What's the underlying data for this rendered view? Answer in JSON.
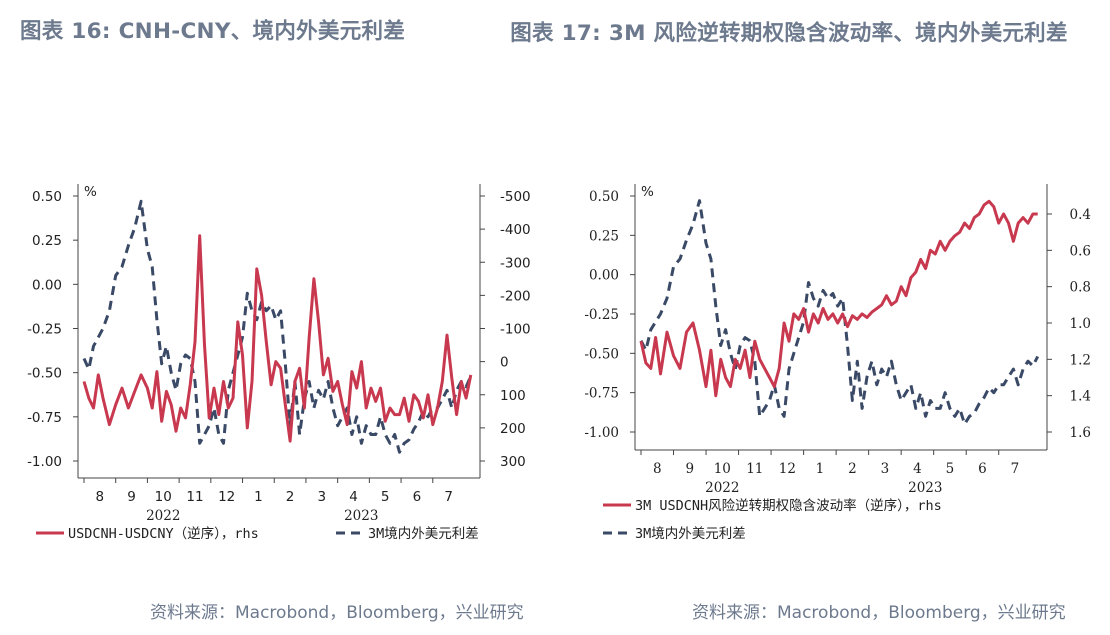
{
  "titles": {
    "left": "图表 16: CNH-CNY、境内外美元利差",
    "right": "图表 17: 3M 风险逆转期权隐含波动率、境内外美元利差"
  },
  "sources": {
    "left": "资料来源：Macrobond，Bloomberg，兴业研究",
    "right": "资料来源：Macrobond，Bloomberg，兴业研究"
  },
  "colors": {
    "red": "#c8394f",
    "navy": "#3a4a66"
  },
  "chart_data": [
    {
      "type": "line",
      "title": "图表 16: CNH-CNY、境内外美元利差",
      "unit_label": "%",
      "x_tick_labels": [
        "8",
        "9",
        "10",
        "11",
        "12",
        "1",
        "2",
        "3",
        "4",
        "5",
        "6",
        "7"
      ],
      "year_labels": [
        "2022",
        "2023"
      ],
      "ylim": [
        -1.0,
        0.5
      ],
      "yticks": [
        "0.50",
        "0.25",
        "0.00",
        "-0.25",
        "-0.50",
        "-0.75",
        "-1.00"
      ],
      "ylim_right": [
        300,
        -500
      ],
      "yticks_right": [
        "-500",
        "-400",
        "-300",
        "-200",
        "-100",
        "0",
        "100",
        "200",
        "300"
      ],
      "x_range": [
        0,
        12.3
      ],
      "series": [
        {
          "name": "USDCNH-USDCNY（逆序），rhs",
          "axis": "right",
          "style": "solid",
          "color": "red",
          "x": [
            0,
            0.15,
            0.3,
            0.45,
            0.6,
            0.8,
            1.0,
            1.2,
            1.4,
            1.6,
            1.8,
            2.0,
            2.15,
            2.3,
            2.45,
            2.6,
            2.75,
            2.9,
            3.05,
            3.2,
            3.35,
            3.5,
            3.65,
            3.8,
            3.95,
            4.1,
            4.25,
            4.4,
            4.55,
            4.7,
            4.85,
            5.0,
            5.15,
            5.3,
            5.45,
            5.6,
            5.75,
            5.9,
            6.05,
            6.2,
            6.35,
            6.5,
            6.65,
            6.8,
            6.95,
            7.1,
            7.25,
            7.4,
            7.55,
            7.7,
            7.85,
            8.0,
            8.15,
            8.3,
            8.45,
            8.6,
            8.75,
            8.9,
            9.05,
            9.2,
            9.35,
            9.5,
            9.65,
            9.8,
            9.95,
            10.1,
            10.25,
            10.4,
            10.55,
            10.7,
            10.85,
            11.0,
            11.15,
            11.3,
            11.45,
            11.6,
            11.75,
            11.9,
            12.05,
            12.2
          ],
          "values": [
            60,
            110,
            140,
            40,
            110,
            190,
            130,
            80,
            140,
            90,
            40,
            80,
            140,
            30,
            180,
            90,
            130,
            210,
            140,
            170,
            70,
            -60,
            -380,
            -50,
            170,
            80,
            160,
            60,
            140,
            110,
            -120,
            -20,
            200,
            60,
            -280,
            -200,
            -60,
            70,
            0,
            20,
            130,
            240,
            60,
            20,
            140,
            -70,
            -250,
            -120,
            40,
            -10,
            90,
            60,
            130,
            190,
            30,
            80,
            0,
            140,
            80,
            120,
            80,
            180,
            140,
            160,
            160,
            110,
            180,
            100,
            120,
            170,
            100,
            190,
            140,
            60,
            -80,
            50,
            160,
            60,
            110,
            40
          ]
        },
        {
          "name": "3M境内外美元利差",
          "axis": "left",
          "style": "dashed",
          "color": "navy",
          "x": [
            0,
            0.15,
            0.3,
            0.45,
            0.6,
            0.8,
            1.0,
            1.2,
            1.4,
            1.6,
            1.8,
            2.0,
            2.15,
            2.3,
            2.45,
            2.6,
            2.75,
            2.9,
            3.05,
            3.2,
            3.35,
            3.5,
            3.65,
            3.8,
            3.95,
            4.1,
            4.25,
            4.4,
            4.55,
            4.7,
            4.85,
            5.0,
            5.15,
            5.3,
            5.45,
            5.6,
            5.75,
            5.9,
            6.05,
            6.2,
            6.35,
            6.5,
            6.65,
            6.8,
            6.95,
            7.1,
            7.25,
            7.4,
            7.55,
            7.7,
            7.85,
            8.0,
            8.15,
            8.3,
            8.45,
            8.6,
            8.75,
            8.9,
            9.05,
            9.2,
            9.35,
            9.5,
            9.65,
            9.8,
            9.95,
            10.1,
            10.25,
            10.4,
            10.55,
            10.7,
            10.85,
            11.0,
            11.15,
            11.3,
            11.45,
            11.6,
            11.75,
            11.9,
            12.05,
            12.2
          ],
          "values": [
            -0.42,
            -0.48,
            -0.35,
            -0.3,
            -0.25,
            -0.15,
            0.05,
            0.1,
            0.22,
            0.32,
            0.47,
            0.2,
            0.1,
            -0.2,
            -0.45,
            -0.35,
            -0.5,
            -0.6,
            -0.45,
            -0.4,
            -0.42,
            -0.55,
            -0.9,
            -0.85,
            -0.8,
            -0.7,
            -0.85,
            -0.9,
            -0.6,
            -0.5,
            -0.4,
            -0.3,
            -0.05,
            -0.15,
            -0.2,
            -0.1,
            -0.15,
            -0.12,
            -0.2,
            -0.15,
            -0.45,
            -0.8,
            -0.55,
            -0.85,
            -0.65,
            -0.55,
            -0.7,
            -0.6,
            -0.65,
            -0.55,
            -0.7,
            -0.8,
            -0.75,
            -0.7,
            -0.85,
            -0.75,
            -0.9,
            -0.8,
            -0.85,
            -0.85,
            -0.75,
            -0.85,
            -0.9,
            -0.85,
            -0.95,
            -0.9,
            -0.88,
            -0.82,
            -0.78,
            -0.72,
            -0.75,
            -0.7,
            -0.7,
            -0.65,
            -0.6,
            -0.7,
            -0.6,
            -0.55,
            -0.58,
            -0.52
          ]
        }
      ]
    },
    {
      "type": "line",
      "title": "图表 17: 3M 风险逆转期权隐含波动率、境内外美元利差",
      "unit_label": "%",
      "x_tick_labels": [
        "8",
        "9",
        "10",
        "11",
        "12",
        "1",
        "2",
        "3",
        "4",
        "5",
        "6",
        "7"
      ],
      "year_labels": [
        "2022",
        "2023"
      ],
      "ylim": [
        -1.1,
        0.5
      ],
      "yticks": [
        "0.50",
        "0.25",
        "0.00",
        "-0.25",
        "-0.50",
        "-0.75",
        "-1.00"
      ],
      "ylim_right": [
        1.7,
        0.3
      ],
      "yticks_right": [
        "0.4",
        "0.6",
        "0.8",
        "1.0",
        "1.2",
        "1.4",
        "1.6"
      ],
      "x_range": [
        0,
        12.3
      ],
      "series": [
        {
          "name": "3M USDCNH风险逆转期权隐含波动率（逆序），rhs",
          "axis": "right",
          "style": "solid",
          "color": "red",
          "x": [
            0,
            0.15,
            0.3,
            0.45,
            0.6,
            0.8,
            1.0,
            1.2,
            1.4,
            1.6,
            1.8,
            2.0,
            2.15,
            2.3,
            2.45,
            2.6,
            2.75,
            2.9,
            3.05,
            3.2,
            3.35,
            3.5,
            3.65,
            3.8,
            3.95,
            4.1,
            4.25,
            4.4,
            4.55,
            4.7,
            4.85,
            5.0,
            5.15,
            5.3,
            5.45,
            5.6,
            5.75,
            5.9,
            6.05,
            6.2,
            6.35,
            6.5,
            6.65,
            6.8,
            6.95,
            7.1,
            7.25,
            7.4,
            7.55,
            7.7,
            7.85,
            8.0,
            8.15,
            8.3,
            8.45,
            8.6,
            8.75,
            8.9,
            9.05,
            9.2,
            9.35,
            9.5,
            9.65,
            9.8,
            9.95,
            10.1,
            10.25,
            10.4,
            10.55,
            10.7,
            10.85,
            11.0,
            11.15,
            11.3,
            11.45,
            11.6,
            11.75,
            11.9,
            12.05,
            12.2
          ],
          "values": [
            1.1,
            1.22,
            1.25,
            1.08,
            1.28,
            1.05,
            1.18,
            1.25,
            1.05,
            1.0,
            1.15,
            1.35,
            1.15,
            1.4,
            1.2,
            1.3,
            1.35,
            1.2,
            1.25,
            1.15,
            1.3,
            1.1,
            1.2,
            1.25,
            1.3,
            1.35,
            1.25,
            1.0,
            1.1,
            0.95,
            0.98,
            0.92,
            1.05,
            0.95,
            1.0,
            0.92,
            0.98,
            0.95,
            1.0,
            0.95,
            1.02,
            0.96,
            0.98,
            0.95,
            0.97,
            0.94,
            0.92,
            0.9,
            0.85,
            0.9,
            0.88,
            0.8,
            0.85,
            0.75,
            0.72,
            0.65,
            0.7,
            0.6,
            0.62,
            0.55,
            0.6,
            0.55,
            0.52,
            0.5,
            0.45,
            0.48,
            0.42,
            0.4,
            0.35,
            0.33,
            0.36,
            0.45,
            0.4,
            0.45,
            0.55,
            0.45,
            0.42,
            0.45,
            0.4,
            0.4
          ]
        },
        {
          "name": "3M境内外美元利差",
          "axis": "left",
          "style": "dashed",
          "color": "navy",
          "x": [
            0,
            0.15,
            0.3,
            0.45,
            0.6,
            0.8,
            1.0,
            1.2,
            1.4,
            1.6,
            1.8,
            2.0,
            2.15,
            2.3,
            2.45,
            2.6,
            2.75,
            2.9,
            3.05,
            3.2,
            3.35,
            3.5,
            3.65,
            3.8,
            3.95,
            4.1,
            4.25,
            4.4,
            4.55,
            4.7,
            4.85,
            5.0,
            5.15,
            5.3,
            5.45,
            5.6,
            5.75,
            5.9,
            6.05,
            6.2,
            6.35,
            6.5,
            6.65,
            6.8,
            6.95,
            7.1,
            7.25,
            7.4,
            7.55,
            7.7,
            7.85,
            8.0,
            8.15,
            8.3,
            8.45,
            8.6,
            8.75,
            8.9,
            9.05,
            9.2,
            9.35,
            9.5,
            9.65,
            9.8,
            9.95,
            10.1,
            10.25,
            10.4,
            10.55,
            10.7,
            10.85,
            11.0,
            11.15,
            11.3,
            11.45,
            11.6,
            11.75,
            11.9,
            12.05,
            12.2
          ],
          "values": [
            -0.42,
            -0.48,
            -0.35,
            -0.3,
            -0.25,
            -0.15,
            0.05,
            0.1,
            0.22,
            0.32,
            0.47,
            0.2,
            0.1,
            -0.2,
            -0.45,
            -0.35,
            -0.5,
            -0.6,
            -0.45,
            -0.4,
            -0.42,
            -0.55,
            -0.9,
            -0.85,
            -0.8,
            -0.7,
            -0.85,
            -0.9,
            -0.6,
            -0.5,
            -0.4,
            -0.3,
            -0.05,
            -0.15,
            -0.2,
            -0.1,
            -0.15,
            -0.12,
            -0.2,
            -0.15,
            -0.45,
            -0.8,
            -0.55,
            -0.85,
            -0.65,
            -0.55,
            -0.7,
            -0.6,
            -0.65,
            -0.55,
            -0.7,
            -0.8,
            -0.75,
            -0.7,
            -0.85,
            -0.75,
            -0.9,
            -0.8,
            -0.85,
            -0.85,
            -0.75,
            -0.85,
            -0.9,
            -0.85,
            -0.95,
            -0.9,
            -0.88,
            -0.82,
            -0.78,
            -0.72,
            -0.75,
            -0.7,
            -0.7,
            -0.65,
            -0.6,
            -0.7,
            -0.6,
            -0.55,
            -0.58,
            -0.52
          ]
        }
      ]
    }
  ]
}
